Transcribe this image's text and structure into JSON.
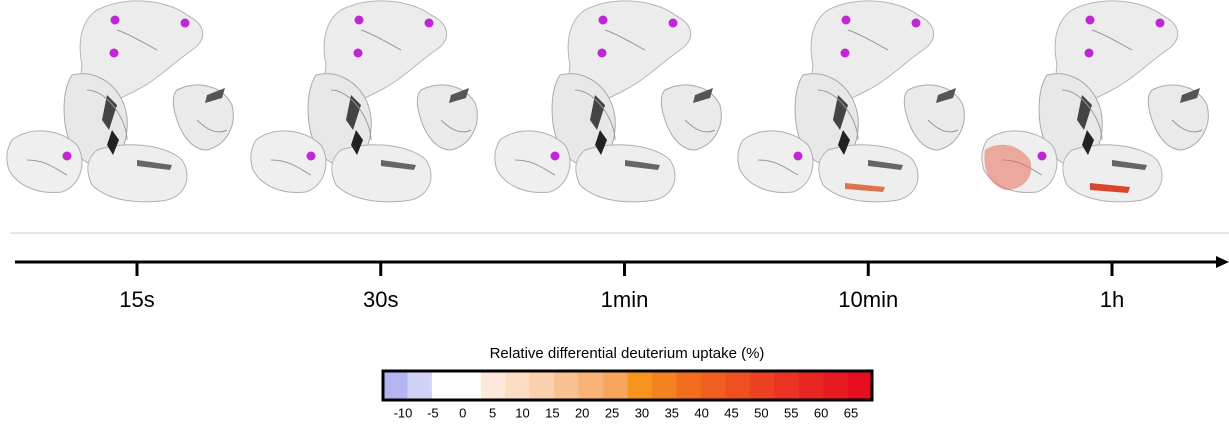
{
  "timeline": {
    "labels": [
      "15s",
      "30s",
      "1min",
      "10min",
      "1h"
    ]
  },
  "colorbar": {
    "title": "Relative differential deuterium uptake (%)",
    "ticks": [
      -10,
      -5,
      0,
      5,
      10,
      15,
      20,
      25,
      30,
      35,
      40,
      45,
      50,
      55,
      60,
      65
    ],
    "colors": [
      "#b4b4f2",
      "#d2d2f7",
      "#ffffff",
      "#ffffff",
      "#fde9db",
      "#fcdcc3",
      "#fbd0ac",
      "#f9c190",
      "#f8b376",
      "#f7a65c",
      "#f7941d",
      "#f58220",
      "#f36f1f",
      "#f15f20",
      "#ef5022",
      "#ed4123",
      "#eb3323",
      "#e92622",
      "#e71a21",
      "#e50d1e"
    ]
  }
}
